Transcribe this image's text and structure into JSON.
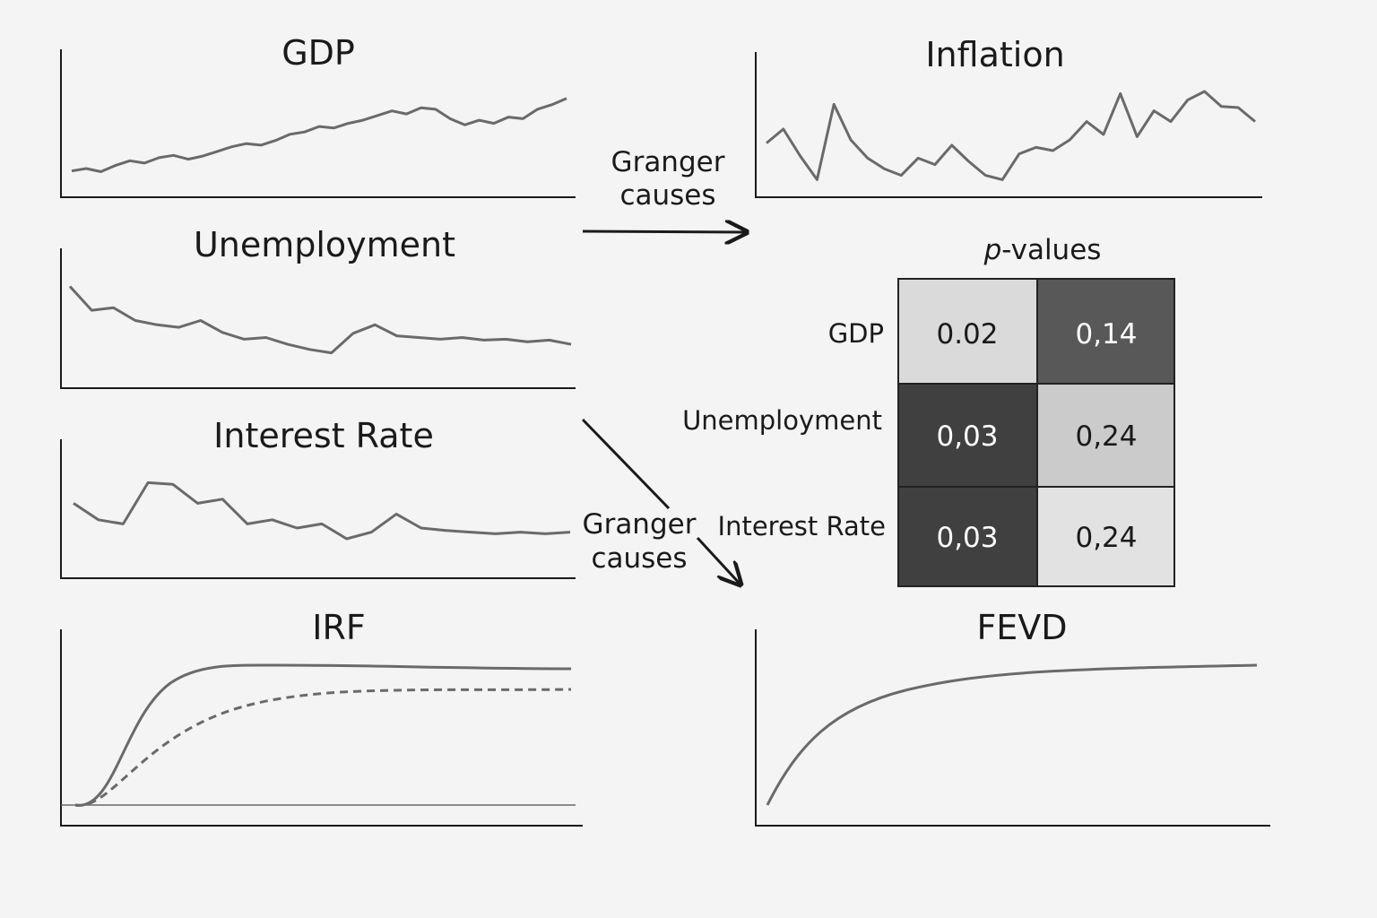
{
  "panels": {
    "gdp": {
      "title": "GDP",
      "values": [
        0.05,
        0.08,
        0.04,
        0.12,
        0.18,
        0.15,
        0.22,
        0.25,
        0.2,
        0.24,
        0.3,
        0.36,
        0.4,
        0.38,
        0.44,
        0.52,
        0.55,
        0.62,
        0.6,
        0.66,
        0.7,
        0.76,
        0.82,
        0.78,
        0.86,
        0.84,
        0.72,
        0.64,
        0.7,
        0.66,
        0.74,
        0.72,
        0.84,
        0.9,
        0.98
      ]
    },
    "inflation": {
      "title": "Inflation",
      "values": [
        0.42,
        0.55,
        0.3,
        0.08,
        0.78,
        0.45,
        0.28,
        0.18,
        0.12,
        0.28,
        0.22,
        0.4,
        0.25,
        0.12,
        0.08,
        0.32,
        0.38,
        0.35,
        0.45,
        0.62,
        0.5,
        0.88,
        0.48,
        0.72,
        0.62,
        0.82,
        0.9,
        0.76,
        0.75,
        0.62
      ]
    },
    "unemployment": {
      "title": "Unemployment",
      "values": [
        0.9,
        0.62,
        0.65,
        0.5,
        0.45,
        0.42,
        0.5,
        0.36,
        0.28,
        0.3,
        0.22,
        0.16,
        0.12,
        0.35,
        0.45,
        0.32,
        0.3,
        0.28,
        0.3,
        0.27,
        0.28,
        0.25,
        0.27,
        0.22
      ]
    },
    "interest_rate": {
      "title": "Interest Rate",
      "values": [
        0.55,
        0.35,
        0.3,
        0.8,
        0.78,
        0.55,
        0.6,
        0.3,
        0.35,
        0.25,
        0.3,
        0.12,
        0.2,
        0.42,
        0.25,
        0.22,
        0.2,
        0.18,
        0.2,
        0.18,
        0.2
      ]
    },
    "irf": {
      "title": "IRF"
    },
    "fevd": {
      "title": "FEVD"
    }
  },
  "arrows": {
    "top": {
      "line1": "Granger",
      "line2": "causes"
    },
    "bottom": {
      "line1": "Granger",
      "line2": "causes"
    }
  },
  "pvalues": {
    "title_italic": "p",
    "title_rest": "-values",
    "rows": [
      {
        "label": "GDP",
        "cells": [
          "0.02",
          "0,14"
        ],
        "shades": [
          "#dadada",
          "#585858"
        ]
      },
      {
        "label": "Unemployment",
        "cells": [
          "0,03",
          "0,24"
        ],
        "shades": [
          "#404040",
          "#cbcbcb"
        ]
      },
      {
        "label": "Interest Rate",
        "cells": [
          "0,03",
          "0,24"
        ],
        "shades": [
          "#404040",
          "#e2e2e2"
        ]
      }
    ]
  },
  "colors": {
    "line": "#6a6a6a",
    "axis": "#1a1a1a",
    "cell_border": "#222222"
  }
}
